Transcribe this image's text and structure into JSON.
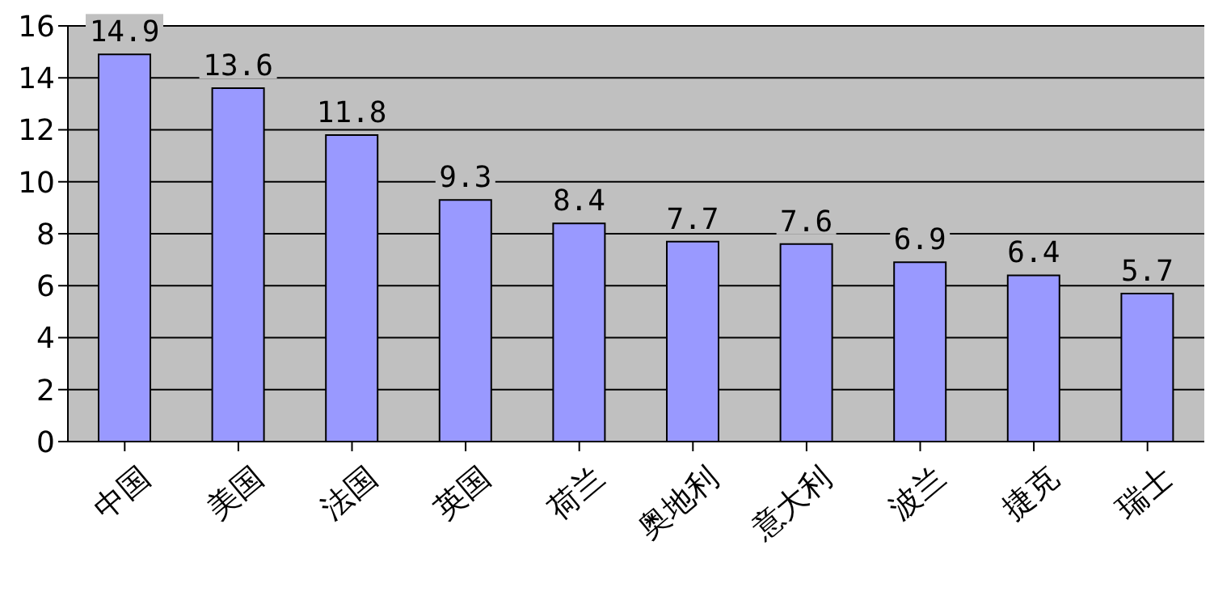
{
  "chart_data": {
    "type": "bar",
    "categories": [
      "中国",
      "美国",
      "法国",
      "英国",
      "荷兰",
      "奥地利",
      "意大利",
      "波兰",
      "捷克",
      "瑞士"
    ],
    "values": [
      14.9,
      13.6,
      11.8,
      9.3,
      8.4,
      7.7,
      7.6,
      6.9,
      6.4,
      5.7
    ],
    "color": "#9999ff",
    "ylim": [
      0,
      16
    ],
    "yticks": [
      0,
      2,
      4,
      6,
      8,
      10,
      12,
      14,
      16
    ],
    "grid": "y",
    "data_labels": true
  }
}
